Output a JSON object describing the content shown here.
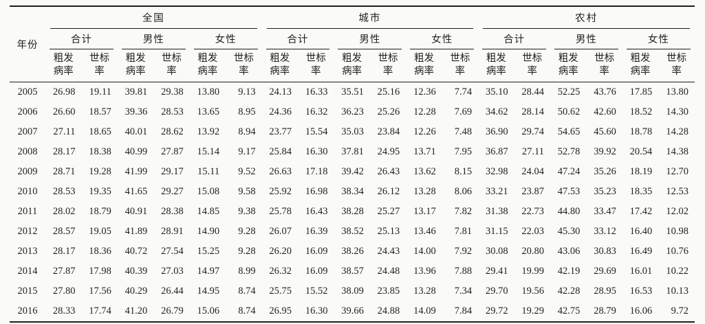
{
  "page": {
    "background_color": "#fafaf7",
    "rule_color": "#1c1c1c",
    "text_color": "#1f1f1f"
  },
  "table": {
    "year_header": "年份",
    "groups": [
      "全国",
      "城市",
      "农村"
    ],
    "subgroups": [
      "合计",
      "男性",
      "女性"
    ],
    "metrics": [
      "粗发\n病率",
      "世标\n率"
    ],
    "rows": [
      {
        "year": "2005",
        "values": [
          "26.98",
          "19.11",
          "39.81",
          "29.38",
          "13.80",
          "9.13",
          "24.13",
          "16.33",
          "35.51",
          "25.16",
          "12.36",
          "7.74",
          "35.10",
          "28.44",
          "52.25",
          "43.76",
          "17.85",
          "13.80"
        ]
      },
      {
        "year": "2006",
        "values": [
          "26.60",
          "18.57",
          "39.36",
          "28.53",
          "13.65",
          "8.95",
          "24.36",
          "16.32",
          "36.23",
          "25.26",
          "12.28",
          "7.69",
          "34.62",
          "28.14",
          "50.62",
          "42.60",
          "18.52",
          "14.30"
        ]
      },
      {
        "year": "2007",
        "values": [
          "27.11",
          "18.65",
          "40.01",
          "28.62",
          "13.92",
          "8.94",
          "23.77",
          "15.54",
          "35.03",
          "23.84",
          "12.26",
          "7.48",
          "36.90",
          "29.74",
          "54.65",
          "45.60",
          "18.78",
          "14.28"
        ]
      },
      {
        "year": "2008",
        "values": [
          "28.17",
          "18.38",
          "40.99",
          "27.87",
          "15.14",
          "9.17",
          "25.84",
          "16.30",
          "37.81",
          "24.95",
          "13.71",
          "7.95",
          "36.87",
          "27.11",
          "52.78",
          "39.92",
          "20.54",
          "14.38"
        ]
      },
      {
        "year": "2009",
        "values": [
          "28.71",
          "19.28",
          "41.99",
          "29.17",
          "15.11",
          "9.52",
          "26.63",
          "17.18",
          "39.42",
          "26.43",
          "13.62",
          "8.15",
          "32.98",
          "24.04",
          "47.24",
          "35.26",
          "18.19",
          "12.70"
        ]
      },
      {
        "year": "2010",
        "values": [
          "28.53",
          "19.35",
          "41.65",
          "29.27",
          "15.08",
          "9.58",
          "25.92",
          "16.98",
          "38.34",
          "26.12",
          "13.28",
          "8.06",
          "33.21",
          "23.87",
          "47.53",
          "35.23",
          "18.35",
          "12.53"
        ]
      },
      {
        "year": "2011",
        "values": [
          "28.02",
          "18.79",
          "40.91",
          "28.38",
          "14.85",
          "9.38",
          "25.78",
          "16.43",
          "38.28",
          "25.27",
          "13.17",
          "7.82",
          "31.38",
          "22.73",
          "44.80",
          "33.47",
          "17.42",
          "12.02"
        ]
      },
      {
        "year": "2012",
        "values": [
          "28.57",
          "19.05",
          "41.89",
          "28.91",
          "14.90",
          "9.28",
          "26.07",
          "16.39",
          "38.52",
          "25.13",
          "13.46",
          "7.81",
          "31.15",
          "22.03",
          "45.30",
          "33.12",
          "16.40",
          "10.98"
        ]
      },
      {
        "year": "2013",
        "values": [
          "28.17",
          "18.36",
          "40.72",
          "27.54",
          "15.25",
          "9.28",
          "26.20",
          "16.09",
          "38.26",
          "24.43",
          "14.00",
          "7.92",
          "30.08",
          "20.80",
          "43.06",
          "30.83",
          "16.49",
          "10.76"
        ]
      },
      {
        "year": "2014",
        "values": [
          "27.87",
          "17.98",
          "40.39",
          "27.03",
          "14.97",
          "8.99",
          "26.32",
          "16.09",
          "38.57",
          "24.48",
          "13.96",
          "7.88",
          "29.41",
          "19.99",
          "42.19",
          "29.69",
          "16.01",
          "10.22"
        ]
      },
      {
        "year": "2015",
        "values": [
          "27.80",
          "17.56",
          "40.29",
          "26.44",
          "14.95",
          "8.74",
          "25.75",
          "15.52",
          "38.09",
          "23.85",
          "13.28",
          "7.34",
          "29.70",
          "19.56",
          "42.28",
          "28.95",
          "16.53",
          "10.13"
        ]
      },
      {
        "year": "2016",
        "values": [
          "28.33",
          "17.74",
          "41.20",
          "26.79",
          "15.06",
          "8.74",
          "26.95",
          "16.30",
          "39.66",
          "24.88",
          "14.09",
          "7.84",
          "29.72",
          "19.29",
          "42.75",
          "28.79",
          "16.06",
          "9.72"
        ]
      }
    ]
  },
  "chart_data": {
    "type": "table",
    "title": "",
    "row_header": "年份",
    "column_structure": {
      "groups": [
        "全国",
        "城市",
        "农村"
      ],
      "subgroups_per_group": [
        "合计",
        "男性",
        "女性"
      ],
      "metrics_per_subgroup": [
        "粗发病率",
        "世标率"
      ]
    },
    "years": [
      2005,
      2006,
      2007,
      2008,
      2009,
      2010,
      2011,
      2012,
      2013,
      2014,
      2015,
      2016
    ]
  }
}
